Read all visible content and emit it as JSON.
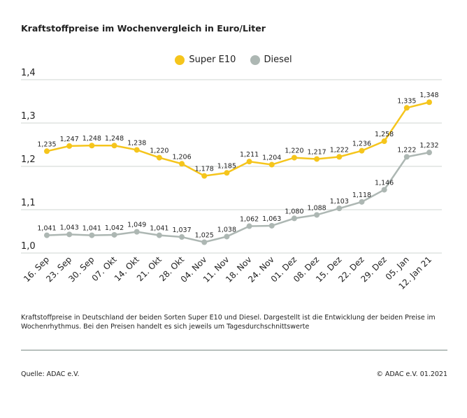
{
  "chart_data": {
    "type": "line",
    "title": "Kraftstoffpreise im Wochenvergleich in Euro/Liter",
    "categories": [
      "16. Sep",
      "23. Sep",
      "30. Sep",
      "07. Okt",
      "14. Okt",
      "21. Okt",
      "28. Okt",
      "04. Nov",
      "11. Nov",
      "18. Nov",
      "24. Nov",
      "01. Dez",
      "08. Dez",
      "15. Dez",
      "22. Dez",
      "29. Dez",
      "05. Jan",
      "12. Jan 21"
    ],
    "series": [
      {
        "name": "Super E10",
        "color": "#f5c51c",
        "values": [
          1.235,
          1.247,
          1.248,
          1.248,
          1.238,
          1.22,
          1.206,
          1.178,
          1.185,
          1.211,
          1.204,
          1.22,
          1.217,
          1.222,
          1.236,
          1.258,
          1.335,
          1.348
        ],
        "labels": [
          "1,235",
          "1,247",
          "1,248",
          "1,248",
          "1,238",
          "1,220",
          "1,206",
          "1,178",
          "1,185",
          "1,211",
          "1,204",
          "1,220",
          "1,217",
          "1,222",
          "1,236",
          "1,258",
          "1,335",
          "1,348"
        ]
      },
      {
        "name": "Diesel",
        "color": "#adb7b3",
        "values": [
          1.041,
          1.043,
          1.041,
          1.042,
          1.049,
          1.041,
          1.037,
          1.025,
          1.038,
          1.062,
          1.063,
          1.08,
          1.088,
          1.103,
          1.118,
          1.146,
          1.222,
          1.232
        ],
        "labels": [
          "1,041",
          "1,043",
          "1,041",
          "1,042",
          "1,049",
          "1,041",
          "1,037",
          "1,025",
          "1,038",
          "1,062",
          "1,063",
          "1,080",
          "1,088",
          "1,103",
          "1,118",
          "1,146",
          "1,222",
          "1,232"
        ]
      }
    ],
    "yticks": [
      "1,4",
      "1,3",
      "1,2",
      "1,1",
      "1,0"
    ],
    "ytick_values": [
      1.4,
      1.3,
      1.2,
      1.1,
      1.0
    ],
    "ylim": [
      1.0,
      1.4
    ],
    "grid": true,
    "legend": "top-center"
  },
  "note": "Kraftstoffpreise in Deutschland der beiden Sorten Super E10 und Diesel. Dargestellt ist die Entwicklung der beiden Preise im Wochenrhythmus. Bei den Preisen handelt es sich jeweils um Tagesdurchschnittswerte",
  "source": "Quelle: ADAC e.V.",
  "copyright": "© ADAC e.V. 01.2021"
}
